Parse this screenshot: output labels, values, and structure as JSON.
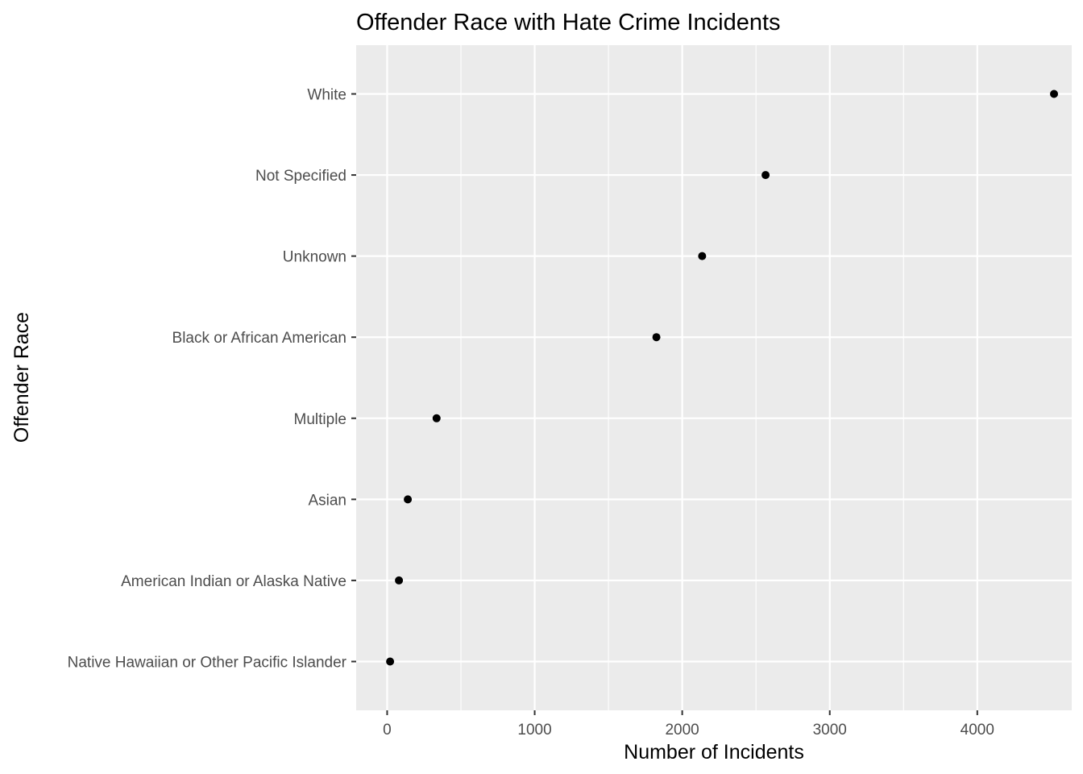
{
  "chart_data": {
    "type": "scatter",
    "title": "Offender Race with Hate Crime Incidents",
    "xlabel": "Number of Incidents",
    "ylabel": "Offender Race",
    "xlim": [
      -210,
      4640
    ],
    "x_ticks": [
      0,
      1000,
      2000,
      3000,
      4000
    ],
    "x_tick_labels": [
      "0",
      "1000",
      "2000",
      "3000",
      "4000"
    ],
    "categories": [
      "Native Hawaiian or Other Pacific Islander",
      "American Indian or Alaska Native",
      "Asian",
      "Multiple",
      "Black or African American",
      "Unknown",
      "Not Specified",
      "White"
    ],
    "values": [
      20,
      80,
      140,
      335,
      1825,
      2135,
      2565,
      4520
    ],
    "grid": true,
    "legend": "none",
    "colors": {
      "panel_background": "#ebebeb",
      "grid_major": "#ffffff",
      "point": "#000000",
      "tick_text": "#4d4d4d",
      "tick_mark": "#333333"
    }
  }
}
